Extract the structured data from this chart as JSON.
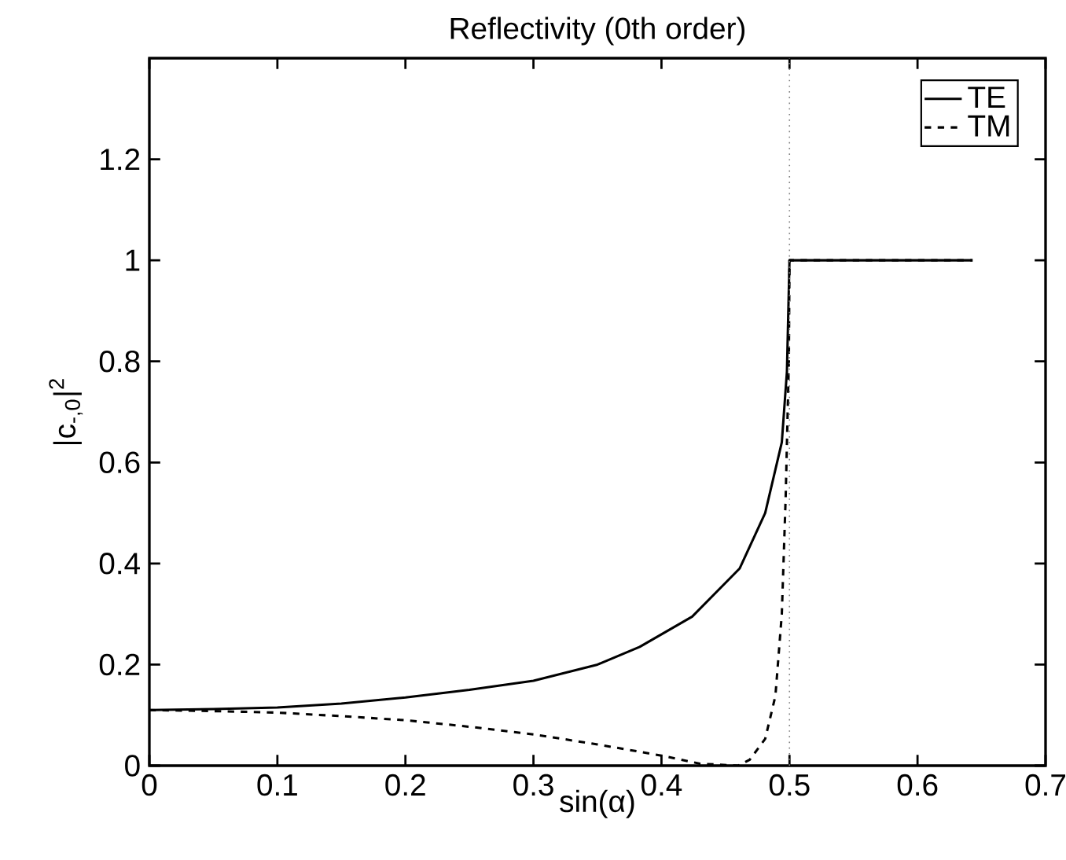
{
  "chart_data": {
    "type": "line",
    "title": "Reflectivity (0th order)",
    "xlabel": "sin(α)",
    "ylabel": "|c$_{-,0}$|$^{2}$",
    "xlim": [
      0,
      0.7
    ],
    "ylim": [
      0,
      1.4
    ],
    "xticks": [
      0,
      0.1,
      0.2,
      0.3,
      0.4,
      0.5,
      0.6,
      0.7
    ],
    "yticks": [
      0,
      0.2,
      0.4,
      0.6,
      0.8,
      1,
      1.2
    ],
    "legend": "top right",
    "ref_lines": [
      {
        "axis": "x",
        "value": 0.5,
        "color": "#808080",
        "line_style": "dotted"
      }
    ],
    "series": [
      {
        "name": "TE",
        "color": "#000000",
        "line_style": "solid",
        "x": [
          0,
          0.05,
          0.1,
          0.15,
          0.2,
          0.25,
          0.3,
          0.35,
          0.383,
          0.424,
          0.461,
          0.481,
          0.494,
          0.498,
          0.5,
          0.55,
          0.6,
          0.643
        ],
        "values": [
          0.11,
          0.112,
          0.115,
          0.123,
          0.135,
          0.15,
          0.168,
          0.2,
          0.235,
          0.295,
          0.39,
          0.5,
          0.64,
          0.78,
          1,
          1,
          1,
          1
        ]
      },
      {
        "name": "TM",
        "color": "#000000",
        "line_style": "dashed",
        "x": [
          0,
          0.05,
          0.1,
          0.15,
          0.2,
          0.25,
          0.3,
          0.35,
          0.4,
          0.43,
          0.46,
          0.469,
          0.481,
          0.489,
          0.494,
          0.497,
          0.4995,
          0.5,
          0.55,
          0.6,
          0.643
        ],
        "values": [
          0.11,
          0.108,
          0.105,
          0.098,
          0.09,
          0.077,
          0.062,
          0.042,
          0.02,
          0.004,
          0.0,
          0.012,
          0.053,
          0.138,
          0.3,
          0.53,
          0.8,
          1,
          1,
          1,
          1
        ]
      }
    ]
  }
}
